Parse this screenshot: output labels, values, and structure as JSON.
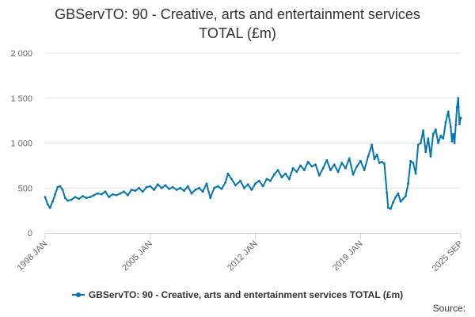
{
  "chart_data": {
    "type": "line",
    "title_line1": "GBServTO: 90 - Creative, arts and entertainment services",
    "title_line2": "TOTAL (£m)",
    "xlabel": "",
    "ylabel": "",
    "ylim": [
      0,
      2000
    ],
    "yticks": [
      0,
      500,
      1000,
      1500,
      2000
    ],
    "ytick_labels": [
      "0",
      "500",
      "1 000",
      "1 500",
      "2 000"
    ],
    "xlim": [
      "1998-01",
      "2025-09"
    ],
    "xticks": [
      "1998-01",
      "2005-01",
      "2012-01",
      "2019-01",
      "2025-09"
    ],
    "xtick_labels": [
      "1998 JAN",
      "2005 JAN",
      "2012 JAN",
      "2019 JAN",
      "2025 SEP"
    ],
    "grid": true,
    "legend_position": "bottom",
    "color": "#0075b7",
    "series": [
      {
        "name": "GBServTO: 90 - Creative, arts and entertainment services TOTAL (£m)",
        "points": [
          [
            "1998-01",
            400
          ],
          [
            "1998-03",
            320
          ],
          [
            "1998-05",
            280
          ],
          [
            "1998-07",
            350
          ],
          [
            "1998-09",
            430
          ],
          [
            "1998-11",
            510
          ],
          [
            "1999-01",
            520
          ],
          [
            "1999-03",
            480
          ],
          [
            "1999-05",
            390
          ],
          [
            "1999-07",
            360
          ],
          [
            "1999-10",
            370
          ],
          [
            "2000-01",
            400
          ],
          [
            "2000-04",
            380
          ],
          [
            "2000-07",
            410
          ],
          [
            "2000-10",
            390
          ],
          [
            "2001-01",
            400
          ],
          [
            "2001-04",
            420
          ],
          [
            "2001-07",
            440
          ],
          [
            "2001-10",
            430
          ],
          [
            "2002-01",
            460
          ],
          [
            "2002-04",
            400
          ],
          [
            "2002-07",
            430
          ],
          [
            "2002-10",
            420
          ],
          [
            "2003-01",
            440
          ],
          [
            "2003-04",
            460
          ],
          [
            "2003-07",
            420
          ],
          [
            "2003-10",
            480
          ],
          [
            "2004-01",
            470
          ],
          [
            "2004-04",
            500
          ],
          [
            "2004-07",
            460
          ],
          [
            "2004-10",
            510
          ],
          [
            "2005-01",
            520
          ],
          [
            "2005-04",
            480
          ],
          [
            "2005-07",
            540
          ],
          [
            "2005-10",
            500
          ],
          [
            "2006-01",
            530
          ],
          [
            "2006-04",
            490
          ],
          [
            "2006-07",
            510
          ],
          [
            "2006-10",
            480
          ],
          [
            "2007-01",
            500
          ],
          [
            "2007-04",
            470
          ],
          [
            "2007-07",
            520
          ],
          [
            "2007-10",
            440
          ],
          [
            "2008-01",
            480
          ],
          [
            "2008-04",
            500
          ],
          [
            "2008-07",
            460
          ],
          [
            "2008-10",
            550
          ],
          [
            "2009-01",
            390
          ],
          [
            "2009-04",
            500
          ],
          [
            "2009-07",
            520
          ],
          [
            "2009-10",
            490
          ],
          [
            "2010-01",
            560
          ],
          [
            "2010-03",
            660
          ],
          [
            "2010-06",
            600
          ],
          [
            "2010-09",
            530
          ],
          [
            "2011-01",
            580
          ],
          [
            "2011-04",
            500
          ],
          [
            "2011-07",
            540
          ],
          [
            "2011-10",
            480
          ],
          [
            "2012-01",
            550
          ],
          [
            "2012-04",
            580
          ],
          [
            "2012-07",
            520
          ],
          [
            "2012-10",
            600
          ],
          [
            "2013-01",
            580
          ],
          [
            "2013-04",
            650
          ],
          [
            "2013-07",
            700
          ],
          [
            "2013-10",
            620
          ],
          [
            "2014-01",
            660
          ],
          [
            "2014-04",
            600
          ],
          [
            "2014-07",
            720
          ],
          [
            "2014-10",
            680
          ],
          [
            "2015-01",
            750
          ],
          [
            "2015-04",
            700
          ],
          [
            "2015-07",
            790
          ],
          [
            "2015-10",
            740
          ],
          [
            "2016-01",
            760
          ],
          [
            "2016-04",
            640
          ],
          [
            "2016-07",
            720
          ],
          [
            "2016-10",
            810
          ],
          [
            "2017-01",
            700
          ],
          [
            "2017-04",
            760
          ],
          [
            "2017-07",
            680
          ],
          [
            "2017-10",
            780
          ],
          [
            "2018-01",
            720
          ],
          [
            "2018-04",
            830
          ],
          [
            "2018-07",
            650
          ],
          [
            "2018-10",
            740
          ],
          [
            "2019-01",
            800
          ],
          [
            "2019-04",
            700
          ],
          [
            "2019-07",
            850
          ],
          [
            "2019-10",
            980
          ],
          [
            "2019-12",
            820
          ],
          [
            "2020-02",
            870
          ],
          [
            "2020-04",
            780
          ],
          [
            "2020-06",
            790
          ],
          [
            "2020-08",
            770
          ],
          [
            "2020-10",
            450
          ],
          [
            "2020-11",
            280
          ],
          [
            "2021-01",
            270
          ],
          [
            "2021-03",
            340
          ],
          [
            "2021-05",
            400
          ],
          [
            "2021-07",
            440
          ],
          [
            "2021-09",
            350
          ],
          [
            "2021-11",
            380
          ],
          [
            "2022-01",
            410
          ],
          [
            "2022-03",
            550
          ],
          [
            "2022-05",
            800
          ],
          [
            "2022-07",
            780
          ],
          [
            "2022-09",
            660
          ],
          [
            "2022-11",
            980
          ],
          [
            "2023-01",
            1000
          ],
          [
            "2023-03",
            1140
          ],
          [
            "2023-05",
            900
          ],
          [
            "2023-07",
            1050
          ],
          [
            "2023-09",
            850
          ],
          [
            "2023-11",
            1100
          ],
          [
            "2024-01",
            1150
          ],
          [
            "2024-03",
            1000
          ],
          [
            "2024-05",
            1080
          ],
          [
            "2024-07",
            1050
          ],
          [
            "2024-09",
            1230
          ],
          [
            "2024-11",
            1350
          ],
          [
            "2025-01",
            1180
          ],
          [
            "2025-02",
            1020
          ],
          [
            "2025-03",
            1100
          ],
          [
            "2025-04",
            1000
          ],
          [
            "2025-05",
            1200
          ],
          [
            "2025-06",
            1400
          ],
          [
            "2025-07",
            1500
          ],
          [
            "2025-08",
            1210
          ],
          [
            "2025-09",
            1280
          ]
        ]
      }
    ]
  },
  "legend": {
    "label": "GBServTO: 90 - Creative, arts and entertainment services TOTAL (£m)"
  },
  "footer": {
    "source_label": "Source:"
  }
}
